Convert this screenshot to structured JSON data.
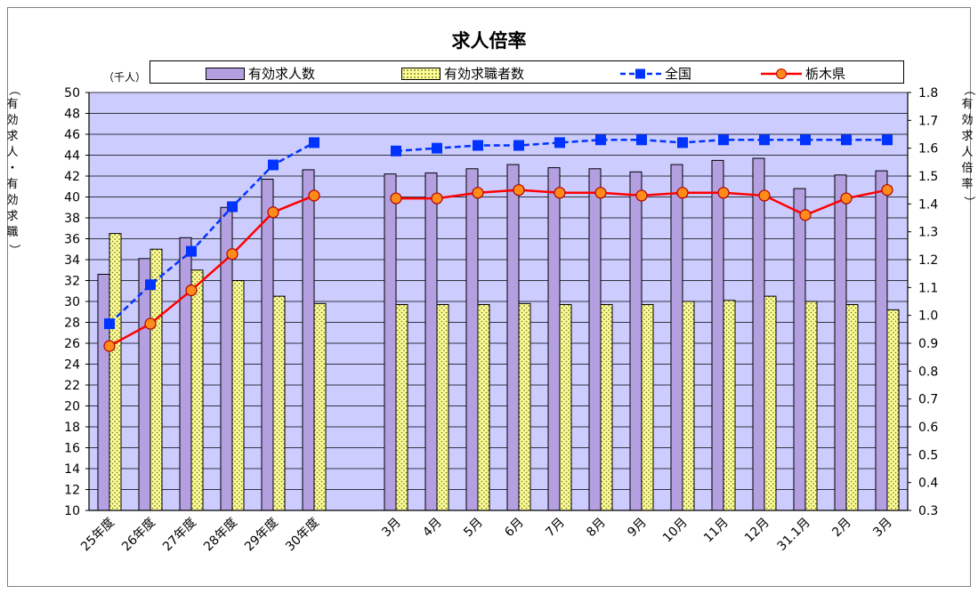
{
  "title": "求人倍率",
  "unit_left": "（千人）",
  "ylabel_left": "（有効求人・有効求職）",
  "ylabel_right": "（有効求人倍率）",
  "colors": {
    "plot_bg": "#ccccff",
    "bar_openings": "#b4a0e0",
    "bar_seekers": "#ffff99",
    "national": "#0033ff",
    "tochigi": "#ff0000",
    "tochigi_marker": "#ff8c1a"
  },
  "legend": {
    "openings": "有効求人数",
    "seekers": "有効求職者数",
    "national": "全国",
    "tochigi": "栃木県"
  },
  "chart_data": {
    "type": "bar",
    "title": "求人倍率",
    "categories": [
      "25年度",
      "26年度",
      "27年度",
      "28年度",
      "29年度",
      "30年度",
      "",
      "3月",
      "4月",
      "5月",
      "6月",
      "7月",
      "8月",
      "9月",
      "10月",
      "11月",
      "12月",
      "31.1月",
      "2月",
      "3月"
    ],
    "ylim_left": [
      10,
      50
    ],
    "ylim_right": [
      0.3,
      1.8
    ],
    "yticks_left": [
      "10",
      "12",
      "14",
      "16",
      "18",
      "20",
      "22",
      "24",
      "26",
      "28",
      "30",
      "32",
      "34",
      "36",
      "38",
      "40",
      "42",
      "44",
      "46",
      "48",
      "50"
    ],
    "yticks_right": [
      "0.3",
      "0.4",
      "0.5",
      "0.6",
      "0.7",
      "0.8",
      "0.9",
      "1.0",
      "1.1",
      "1.2",
      "1.3",
      "1.4",
      "1.5",
      "1.6",
      "1.7",
      "1.8"
    ],
    "grid": true,
    "legend_position": "top",
    "series": [
      {
        "name": "有効求人数",
        "type": "bar",
        "axis": "left",
        "values": [
          32.6,
          34.1,
          36.1,
          39.0,
          41.7,
          42.6,
          null,
          42.2,
          42.3,
          42.7,
          43.1,
          42.8,
          42.7,
          42.4,
          43.1,
          43.5,
          43.7,
          40.8,
          42.1,
          42.5
        ]
      },
      {
        "name": "有効求職者数",
        "type": "bar",
        "axis": "left",
        "values": [
          36.5,
          35.0,
          33.0,
          32.0,
          30.5,
          29.8,
          null,
          29.7,
          29.7,
          29.7,
          29.8,
          29.7,
          29.7,
          29.7,
          30.0,
          30.1,
          30.5,
          30.0,
          29.7,
          29.2
        ]
      },
      {
        "name": "全国",
        "type": "line",
        "axis": "right",
        "values": [
          0.97,
          1.11,
          1.23,
          1.39,
          1.54,
          1.62,
          null,
          1.59,
          1.6,
          1.61,
          1.61,
          1.62,
          1.63,
          1.63,
          1.62,
          1.63,
          1.63,
          1.63,
          1.63,
          1.63
        ]
      },
      {
        "name": "栃木県",
        "type": "line",
        "axis": "right",
        "values": [
          0.89,
          0.97,
          1.09,
          1.22,
          1.37,
          1.43,
          null,
          1.42,
          1.42,
          1.44,
          1.45,
          1.44,
          1.44,
          1.43,
          1.44,
          1.44,
          1.43,
          1.36,
          1.42,
          1.45
        ]
      }
    ]
  }
}
